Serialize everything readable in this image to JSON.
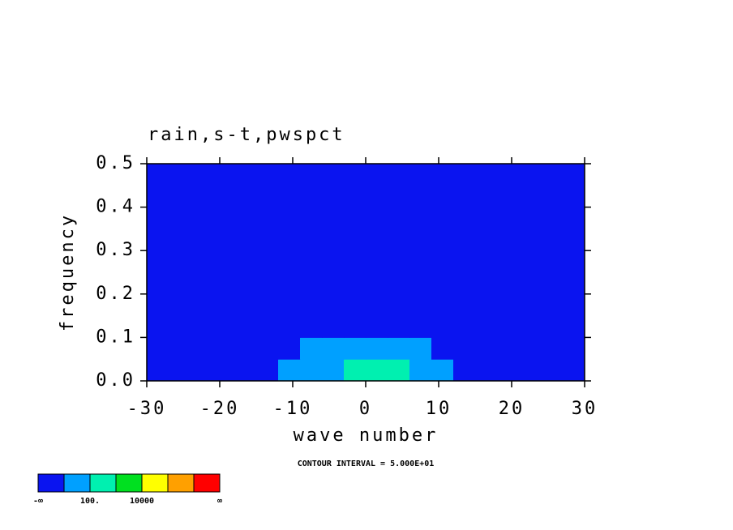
{
  "chart_data": {
    "type": "contour",
    "title": "rain,s-t,pwspct",
    "x_label": "wave number",
    "y_label": "frequency",
    "annotation": "CONTOUR INTERVAL = 5.000E+01",
    "xlim": [
      -30,
      30
    ],
    "xticks": [
      -30,
      -20,
      -10,
      0,
      10,
      20,
      30
    ],
    "ylim": [
      0,
      0.5
    ],
    "yticks": [
      {
        "value": 0,
        "label": "0.0"
      },
      0.1,
      0.2,
      0.3,
      0.4,
      0.5
    ],
    "x": [
      -28.5,
      -25.5,
      -22.5,
      -19.5,
      -16.5,
      -13.5,
      -10.5,
      -7.5,
      -4.5,
      -1.5,
      1.5,
      4.5,
      7.5,
      10.5,
      13.5,
      16.5,
      19.5,
      22.5,
      25.5,
      28.5
    ],
    "y": [
      0.025,
      0.075,
      0.125,
      0.175,
      0.225,
      0.275,
      0.325,
      0.375,
      0.425,
      0.475
    ],
    "z": [
      [
        30,
        30,
        30,
        40,
        60,
        80,
        200,
        300,
        500,
        3000,
        2000,
        1500,
        400,
        200,
        60,
        40,
        30,
        20,
        30,
        30
      ],
      [
        30,
        20,
        30,
        40,
        50,
        60,
        80,
        150,
        200,
        400,
        500,
        300,
        150,
        80,
        40,
        30,
        30,
        20,
        30,
        20
      ],
      [
        30,
        30,
        40,
        30,
        60,
        50,
        60,
        80,
        90,
        80,
        70,
        60,
        50,
        40,
        30,
        20,
        8,
        20,
        8,
        20
      ],
      [
        20,
        30,
        30,
        40,
        30,
        50,
        40,
        60,
        50,
        40,
        50,
        40,
        30,
        30,
        20,
        8,
        20,
        6,
        20,
        8
      ],
      [
        30,
        20,
        40,
        30,
        40,
        30,
        50,
        40,
        60,
        50,
        30,
        40,
        30,
        20,
        8,
        20,
        7,
        20,
        5,
        20
      ],
      [
        20,
        30,
        30,
        40,
        30,
        40,
        60,
        40,
        40,
        30,
        40,
        20,
        30,
        20,
        20,
        6,
        20,
        5,
        8,
        5
      ],
      [
        30,
        8,
        30,
        30,
        40,
        30,
        40,
        50,
        30,
        40,
        30,
        30,
        20,
        8,
        20,
        20,
        5,
        6,
        5,
        4
      ],
      [
        30,
        30,
        20,
        40,
        30,
        40,
        30,
        40,
        30,
        30,
        20,
        30,
        20,
        20,
        8,
        5,
        5,
        4,
        5,
        4
      ],
      [
        20,
        30,
        30,
        30,
        40,
        30,
        30,
        30,
        40,
        20,
        30,
        20,
        30,
        20,
        20,
        7,
        5,
        5,
        4,
        5
      ],
      [
        30,
        30,
        30,
        20,
        30,
        30,
        30,
        20,
        30,
        30,
        20,
        30,
        20,
        20,
        8,
        6,
        20,
        4,
        5,
        3
      ]
    ],
    "colorbar": {
      "colors": [
        "#0a14f0",
        "#00a0ff",
        "#00f0b0",
        "#00e020",
        "#ffff00",
        "#ffa000",
        "#ff0000"
      ],
      "levels": [
        {
          "value": 100,
          "label": "100."
        },
        10000
      ],
      "ends": [
        "-∞",
        "∞"
      ]
    }
  }
}
